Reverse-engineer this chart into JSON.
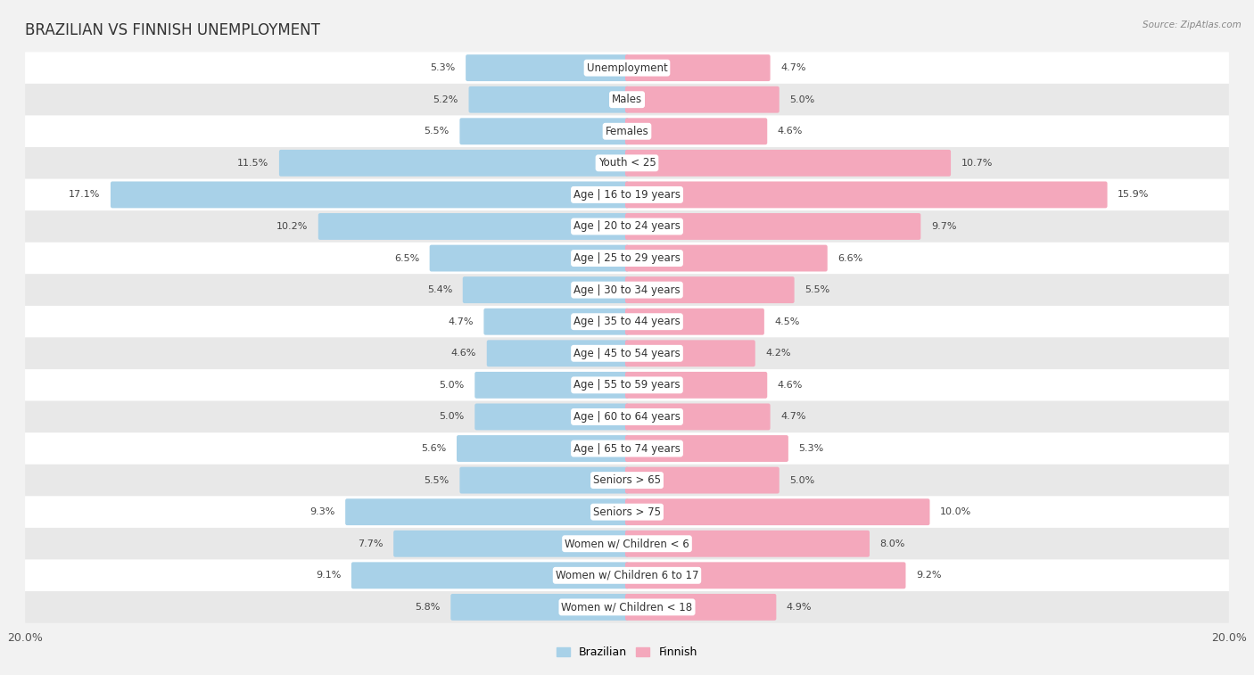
{
  "title": "BRAZILIAN VS FINNISH UNEMPLOYMENT",
  "source": "Source: ZipAtlas.com",
  "categories": [
    "Unemployment",
    "Males",
    "Females",
    "Youth < 25",
    "Age | 16 to 19 years",
    "Age | 20 to 24 years",
    "Age | 25 to 29 years",
    "Age | 30 to 34 years",
    "Age | 35 to 44 years",
    "Age | 45 to 54 years",
    "Age | 55 to 59 years",
    "Age | 60 to 64 years",
    "Age | 65 to 74 years",
    "Seniors > 65",
    "Seniors > 75",
    "Women w/ Children < 6",
    "Women w/ Children 6 to 17",
    "Women w/ Children < 18"
  ],
  "brazilian": [
    5.3,
    5.2,
    5.5,
    11.5,
    17.1,
    10.2,
    6.5,
    5.4,
    4.7,
    4.6,
    5.0,
    5.0,
    5.6,
    5.5,
    9.3,
    7.7,
    9.1,
    5.8
  ],
  "finnish": [
    4.7,
    5.0,
    4.6,
    10.7,
    15.9,
    9.7,
    6.6,
    5.5,
    4.5,
    4.2,
    4.6,
    4.7,
    5.3,
    5.0,
    10.0,
    8.0,
    9.2,
    4.9
  ],
  "brazilian_color": "#a8d1e8",
  "finnish_color": "#f4a8bc",
  "bar_height": 0.72,
  "xlim": 20.0,
  "background_color": "#f2f2f2",
  "row_color_even": "#ffffff",
  "row_color_odd": "#e8e8e8",
  "legend_brazilian": "Brazilian",
  "legend_finnish": "Finnish",
  "title_fontsize": 12,
  "label_fontsize": 8.5,
  "value_fontsize": 8.0,
  "axis_tick_fontsize": 9
}
